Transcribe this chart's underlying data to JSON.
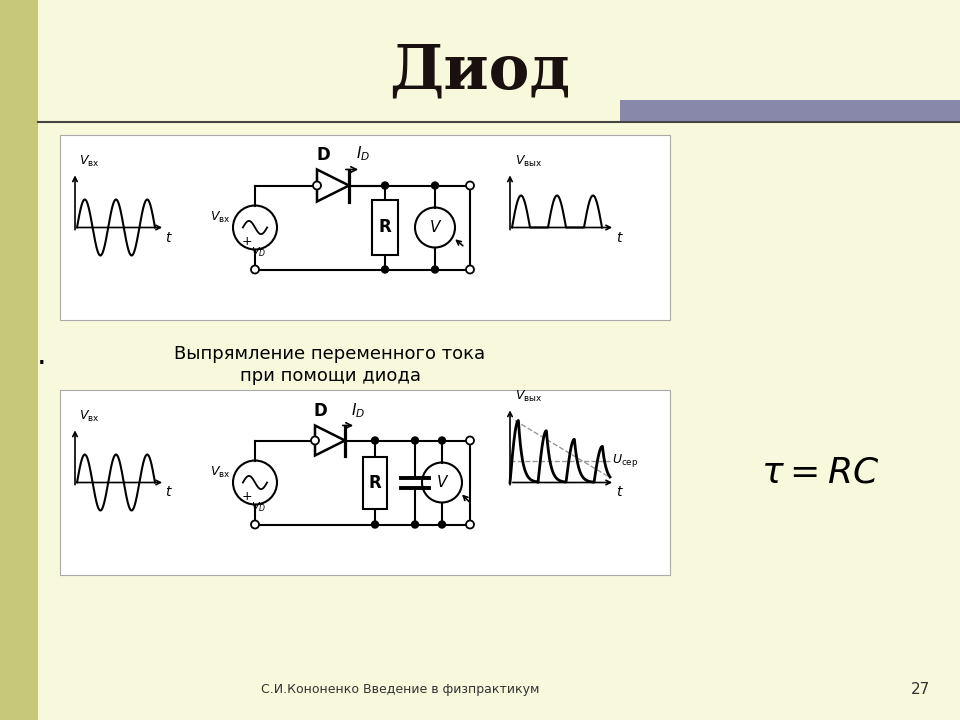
{
  "title": "Диод",
  "bg_color": "#f8f8dc",
  "left_bar_color": "#c8c87a",
  "top_bar_color": "#8888aa",
  "title_color": "#1a1010",
  "caption_line1": "Выпрямление переменного тока",
  "caption_line2": "при помощи диода",
  "footer": "С.И.Кононенко Введение в физпрактикум",
  "page_num": "27"
}
